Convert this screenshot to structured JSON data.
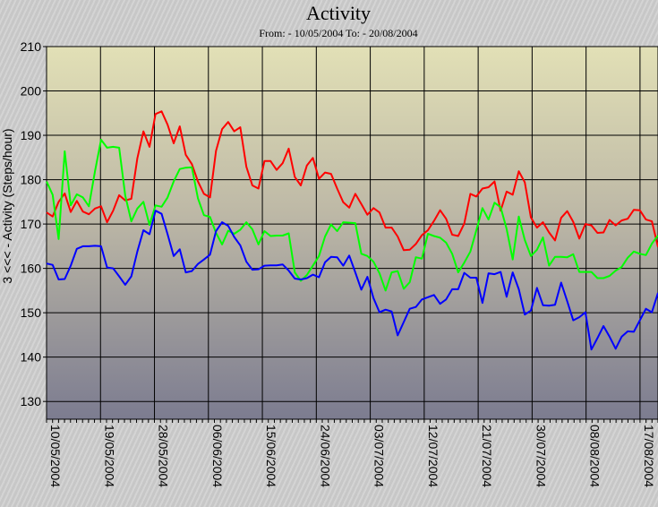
{
  "chart_data": {
    "type": "line",
    "title": "Activity",
    "subtitle": "From: - 10/05/2004 To: - 20/08/2004",
    "ylabel": "3 <<< - Activity  (Steps/hour)",
    "ylim": [
      126,
      210
    ],
    "yticks": [
      130,
      140,
      150,
      160,
      170,
      180,
      190,
      200,
      210
    ],
    "xlim": [
      "10/05/2004",
      "20/08/2004"
    ],
    "xticks": [
      "10/05/2004",
      "19/05/2004",
      "28/05/2004",
      "06/06/2004",
      "15/06/2004",
      "24/06/2004",
      "03/07/2004",
      "12/07/2004",
      "21/07/2004",
      "30/07/2004",
      "08/08/2004",
      "17/08/2004"
    ],
    "grid": true,
    "series": [
      {
        "color": "#ff0000",
        "values": [
          172.6,
          171.7,
          175.0,
          176.9,
          172.7,
          175.2,
          172.8,
          172.2,
          173.5,
          174.0,
          170.4,
          173.0,
          176.5,
          175.3,
          175.7,
          184.8,
          190.9,
          187.4,
          194.8,
          195.4,
          192.4,
          188.2,
          192.0,
          185.6,
          183.5,
          179.6,
          176.8,
          176.0,
          186.5,
          191.4,
          193.0,
          190.9,
          191.8,
          182.9,
          178.7,
          178.0,
          184.2,
          184.2,
          182.2,
          183.7,
          187.0,
          180.6,
          178.7,
          183.2,
          184.9,
          180.2,
          181.6,
          181.3,
          178.0,
          174.9,
          173.7,
          176.8,
          174.5,
          172.1,
          173.6,
          172.6,
          169.2,
          169.2,
          167.2,
          164.1,
          164.2,
          165.5,
          167.5,
          168.6,
          170.7,
          173.1,
          171.2,
          167.6,
          167.3,
          170.1,
          176.8,
          176.2,
          178.0,
          178.3,
          179.6,
          173.0,
          177.3,
          176.6,
          181.9,
          179.4,
          171.5,
          169.2,
          170.4,
          168.1,
          166.3,
          171.4,
          172.9,
          170.5,
          166.7,
          170.0,
          169.7,
          168.0,
          168.1,
          170.9,
          169.7,
          170.8,
          171.2,
          173.2,
          173.1,
          171.0,
          170.6,
          164.8
        ]
      },
      {
        "color": "#00ff00",
        "values": [
          179.6,
          176.6,
          166.6,
          186.4,
          174.2,
          176.7,
          176.0,
          174.0,
          181.9,
          189.0,
          187.2,
          187.4,
          187.2,
          176.4,
          170.6,
          173.5,
          175.0,
          169.8,
          174.2,
          173.9,
          176.0,
          179.6,
          182.4,
          182.7,
          182.8,
          175.8,
          172.0,
          171.6,
          168.0,
          165.4,
          168.5,
          167.8,
          168.7,
          170.4,
          168.8,
          165.4,
          168.4,
          167.3,
          167.4,
          167.4,
          167.9,
          159.1,
          157.2,
          158.5,
          160.6,
          162.8,
          167.2,
          169.9,
          168.4,
          170.4,
          170.3,
          170.2,
          163.3,
          162.8,
          161.5,
          158.9,
          155.0,
          159.1,
          159.4,
          155.4,
          156.9,
          162.5,
          162.2,
          167.8,
          167.3,
          166.9,
          165.8,
          163.3,
          159.1,
          161.3,
          163.8,
          168.6,
          173.6,
          171.0,
          174.8,
          173.8,
          168.9,
          162.0,
          171.7,
          166.4,
          162.8,
          164.2,
          167.0,
          160.6,
          162.6,
          162.6,
          162.5,
          163.2,
          159.2,
          159.2,
          159.2,
          157.8,
          157.8,
          158.3,
          159.5,
          160.3,
          162.4,
          163.8,
          163.3,
          163.0,
          165.6,
          167.4
        ]
      },
      {
        "color": "#0000ff",
        "values": [
          161.1,
          160.8,
          157.5,
          157.6,
          160.6,
          164.4,
          165.0,
          165.0,
          165.1,
          165.0,
          160.2,
          160.0,
          158.2,
          156.3,
          158.2,
          163.8,
          168.6,
          167.7,
          173.0,
          172.3,
          167.7,
          162.8,
          164.3,
          159.1,
          159.4,
          161.0,
          162.0,
          163.1,
          168.4,
          170.4,
          169.6,
          167.1,
          165.2,
          161.5,
          159.7,
          159.8,
          160.6,
          160.7,
          160.7,
          160.9,
          159.5,
          157.7,
          157.5,
          157.8,
          158.6,
          158.0,
          161.4,
          162.6,
          162.5,
          160.6,
          162.9,
          159.1,
          155.2,
          158.1,
          153.3,
          150.1,
          150.7,
          150.3,
          144.9,
          147.9,
          150.9,
          151.3,
          153.0,
          153.5,
          154.0,
          152.0,
          153.0,
          155.3,
          155.3,
          159.0,
          157.9,
          157.9,
          152.2,
          158.9,
          158.7,
          159.2,
          153.6,
          159.1,
          155.3,
          149.6,
          150.5,
          155.6,
          151.7,
          151.6,
          151.8,
          156.8,
          152.6,
          148.3,
          149.0,
          150.1,
          141.7,
          144.3,
          147.0,
          144.6,
          141.9,
          144.6,
          145.8,
          145.7,
          148.3,
          150.9,
          150.1,
          154.5
        ]
      }
    ]
  }
}
